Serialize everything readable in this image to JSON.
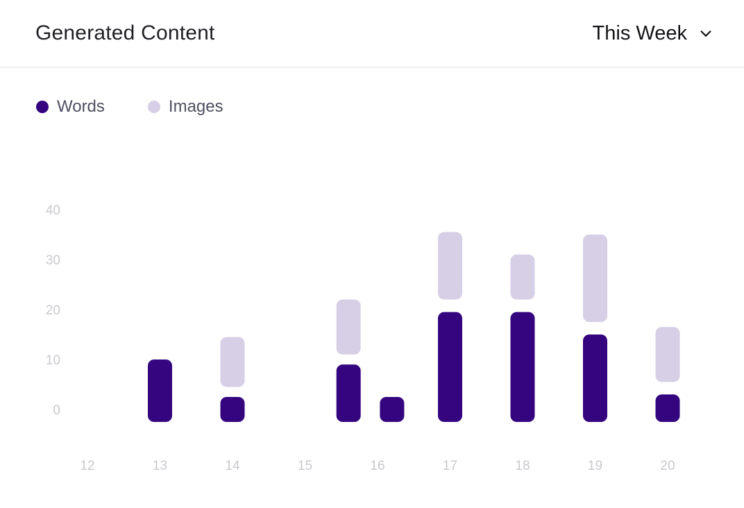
{
  "header": {
    "title": "Generated Content",
    "period_label": "This Week"
  },
  "legend": [
    {
      "label": "Words",
      "color": "#35057f"
    },
    {
      "label": "Images",
      "color": "#d6cfe6"
    }
  ],
  "chart_data": {
    "type": "bar",
    "title": "Generated Content",
    "xlabel": "",
    "ylabel": "",
    "x_ticks": [
      "12",
      "13",
      "14",
      "15",
      "16",
      "17",
      "18",
      "19",
      "20"
    ],
    "y_ticks": [
      0,
      10,
      20,
      30,
      40
    ],
    "ylim": [
      -3,
      40
    ],
    "grid": false,
    "legend_position": "top-left",
    "categories": [
      "13",
      "14",
      "15.5",
      "16",
      "17",
      "18",
      "19",
      "20"
    ],
    "series": [
      {
        "name": "Words",
        "color": "#35057f",
        "segments": [
          {
            "x": 13,
            "from": -2.5,
            "to": 10
          },
          {
            "x": 14,
            "from": -2.5,
            "to": 2.5
          },
          {
            "x": 15.6,
            "from": -2.5,
            "to": 9
          },
          {
            "x": 16.2,
            "from": -2.5,
            "to": 2.5
          },
          {
            "x": 17,
            "from": -2.5,
            "to": 19.5
          },
          {
            "x": 18,
            "from": -2.5,
            "to": 19.5
          },
          {
            "x": 19,
            "from": -2.5,
            "to": 15
          },
          {
            "x": 20,
            "from": -2.5,
            "to": 3
          }
        ]
      },
      {
        "name": "Images",
        "color": "#d6cfe6",
        "segments": [
          {
            "x": 14,
            "from": 4.5,
            "to": 14.5
          },
          {
            "x": 15.6,
            "from": 11,
            "to": 22
          },
          {
            "x": 17,
            "from": 22,
            "to": 35.5
          },
          {
            "x": 18,
            "from": 22,
            "to": 31
          },
          {
            "x": 19,
            "from": 17.5,
            "to": 35
          },
          {
            "x": 20,
            "from": 5.5,
            "to": 16.5
          }
        ]
      }
    ]
  }
}
